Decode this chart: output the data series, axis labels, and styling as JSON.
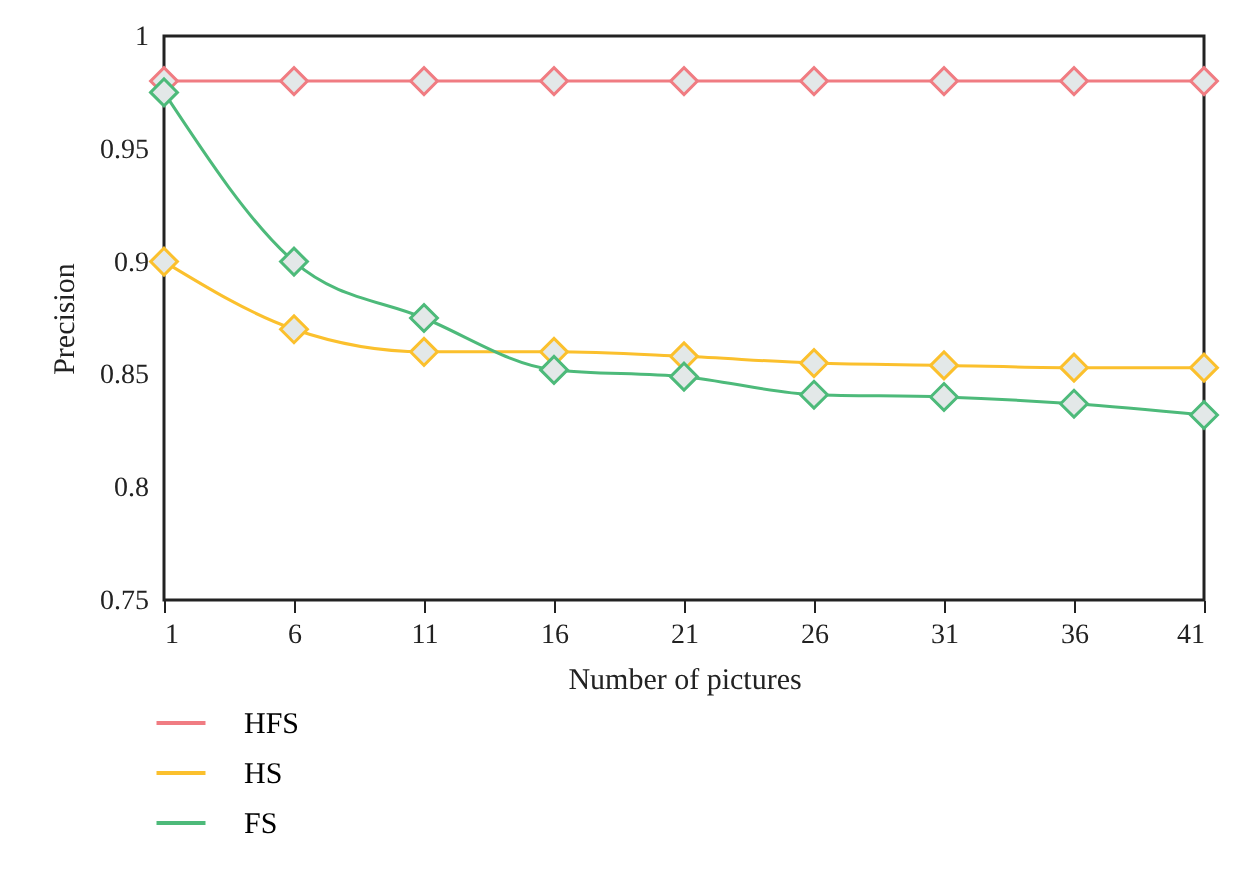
{
  "chart_data": {
    "type": "line",
    "xlabel": "Number of pictures",
    "ylabel": "Precision",
    "x": [
      1,
      6,
      11,
      16,
      21,
      26,
      31,
      36,
      41
    ],
    "series": [
      {
        "name": "HFS",
        "color": "#f07c82",
        "values": [
          0.98,
          0.98,
          0.98,
          0.98,
          0.98,
          0.98,
          0.98,
          0.98,
          0.98
        ]
      },
      {
        "name": "HS",
        "color": "#fbc02d",
        "values": [
          0.9,
          0.87,
          0.86,
          0.86,
          0.858,
          0.855,
          0.854,
          0.853,
          0.853
        ]
      },
      {
        "name": "FS",
        "color": "#4dba7a",
        "values": [
          0.975,
          0.9,
          0.875,
          0.852,
          0.849,
          0.841,
          0.84,
          0.837,
          0.832
        ]
      }
    ],
    "xlim": [
      1,
      41
    ],
    "xticks": [
      1,
      6,
      11,
      16,
      21,
      26,
      31,
      36,
      41
    ],
    "ylim": [
      0.75,
      1
    ],
    "yticks": [
      0.75,
      0.8,
      0.85,
      0.9,
      0.95,
      1
    ],
    "marker": "diamond",
    "line_style": "solid",
    "grid": false,
    "legend": "bottom left"
  }
}
